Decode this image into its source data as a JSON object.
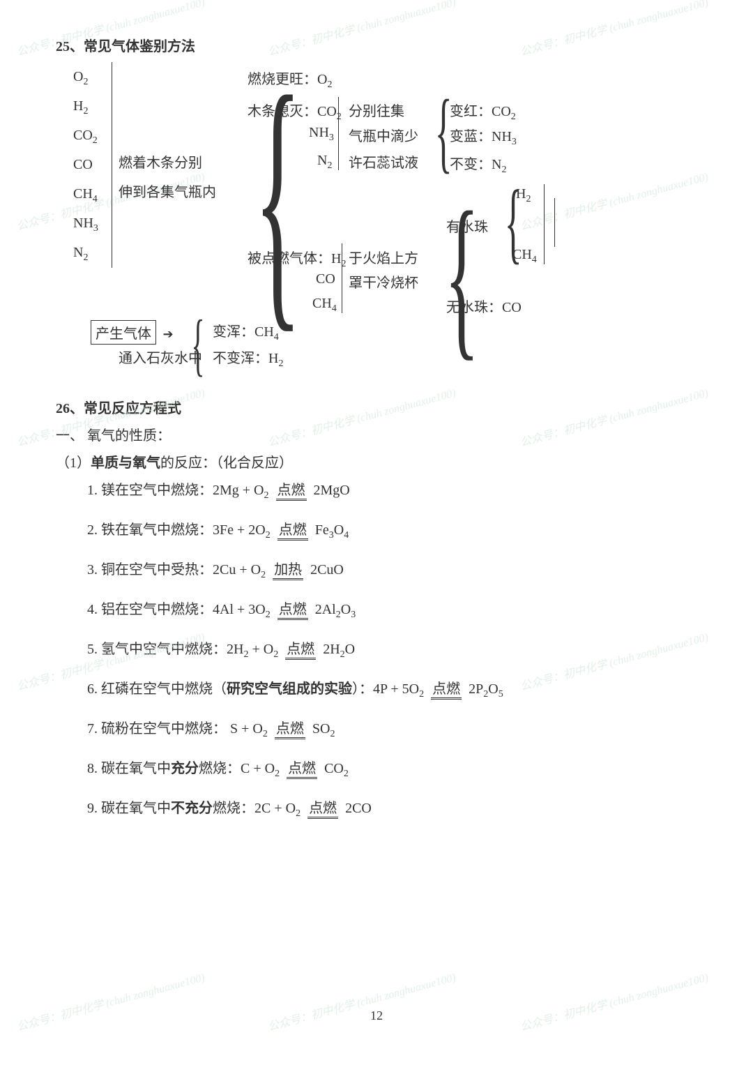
{
  "watermark_text": "公众号：初中化学 (chuh\nzonghuaxue100)",
  "section25": {
    "title": "25、常见气体鉴别方法",
    "gases": [
      "O₂",
      "H₂",
      "CO₂",
      "CO",
      "CH₄",
      "NH₃",
      "N₂"
    ],
    "method1_line1": "燃着木条分别",
    "method1_line2": "伸到各集气瓶内",
    "result1a": "燃烧更旺：O₂",
    "result1b": "木条熄灭：CO₂",
    "result1b2": "NH₃",
    "result1b3": "N₂",
    "result1c": "被点燃气体：H₂",
    "result1c2": "CO",
    "result1c3": "CH₄",
    "method2_line1": "分别往集",
    "method2_line2": "气瓶中滴少",
    "method2_line3": "许石蕊试液",
    "result2a": "变红：CO₂",
    "result2b": "变蓝：NH₃",
    "result2c": "不变：N₂",
    "method3_line1": "于火焰上方",
    "method3_line2": "罩干冷烧杯",
    "result3a_label": "有水珠",
    "result3a1": "H₂",
    "result3a2": "CH₄",
    "result3b": "无水珠：CO",
    "step4_box": "产生气体",
    "step4_line": "通入石灰水中",
    "result4a": "变浑：CH₄",
    "result4b": "不变浑：H₂"
  },
  "section26": {
    "title": "26、常见反应方程式",
    "sub1": "一、 氧气的性质：",
    "sub2_prefix": "（1）",
    "sub2_bold": "单质与氧气",
    "sub2_suffix": "的反应：（化合反应）",
    "equations": [
      {
        "n": "1.",
        "desc": "镁在空气中燃烧：",
        "eq": "2Mg + O₂",
        "cond": "点燃",
        "prod": "2MgO"
      },
      {
        "n": "2.",
        "desc": "铁在氧气中燃烧：",
        "eq": "3Fe + 2O₂",
        "cond": "点燃",
        "prod": "Fe₃O₄"
      },
      {
        "n": "3.",
        "desc": "铜在空气中受热：",
        "eq": "2Cu + O₂",
        "cond": "加热",
        "prod": "2CuO"
      },
      {
        "n": "4.",
        "desc": "铝在空气中燃烧：",
        "eq": "4Al + 3O₂",
        "cond": "点燃",
        "prod": "2Al₂O₃"
      },
      {
        "n": "5.",
        "desc": "氢气中空气中燃烧：",
        "eq": "2H₂ + O₂",
        "cond": "点燃",
        "prod": "2H₂O"
      },
      {
        "n": "6.",
        "desc": "红磷在空气中燃烧（",
        "bold": "研究空气组成的实验",
        "desc2": "）：",
        "eq": "4P + 5O₂",
        "cond": "点燃",
        "prod": "2P₂O₅"
      },
      {
        "n": "7.",
        "desc": "硫粉在空气中燃烧： ",
        "eq": "S + O₂",
        "cond": "点燃",
        "prod": "SO₂"
      },
      {
        "n": "8.",
        "desc": "碳在氧气中",
        "bold": "充分",
        "desc2": "燃烧：",
        "eq": "C + O₂",
        "cond": "点燃",
        "prod": "CO₂"
      },
      {
        "n": "9.",
        "desc": "碳在氧气中",
        "bold": "不充分",
        "desc2": "燃烧：",
        "eq": "2C + O₂",
        "cond": "点燃",
        "prod": "2CO"
      }
    ]
  },
  "page_number": "12"
}
